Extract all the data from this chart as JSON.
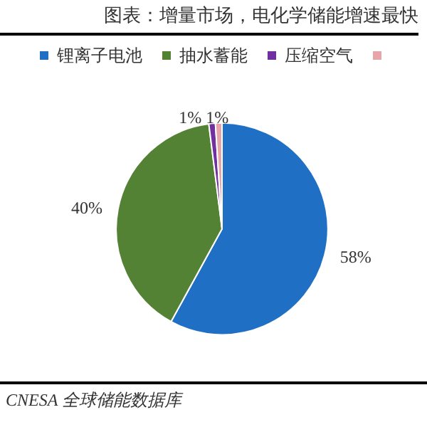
{
  "chart_data": {
    "type": "pie",
    "title": "图表：增量市场，电化学储能增速最快",
    "categories": [
      "锂离子电池",
      "抽水蓄能",
      "压缩空气",
      null
    ],
    "values": [
      58,
      40,
      1,
      1
    ],
    "colors": [
      "#1f6fc5",
      "#548235",
      "#7030a0",
      "#e6a5a8"
    ],
    "value_labels": [
      "58%",
      "40%",
      "1%",
      "1%"
    ],
    "legend": "top",
    "annotations": [
      "CNESA 全球储能数据库"
    ]
  }
}
